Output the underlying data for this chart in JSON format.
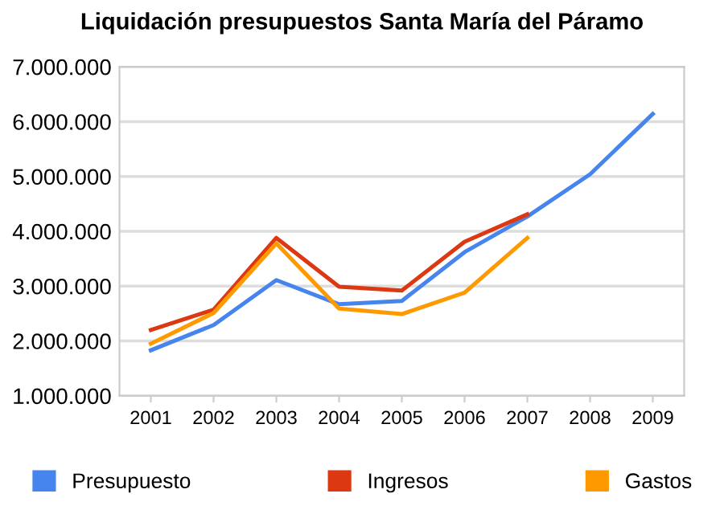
{
  "chart_data": {
    "type": "line",
    "title": "Liquidación presupuestos Santa María del Páramo",
    "categories": [
      "2001",
      "2002",
      "2003",
      "2004",
      "2005",
      "2006",
      "2007",
      "2008",
      "2009"
    ],
    "series": [
      {
        "name": "Presupuesto",
        "color": "#4684ee",
        "values": [
          1830000,
          2290000,
          3110000,
          2670000,
          2730000,
          3620000,
          4270000,
          5040000,
          6140000
        ]
      },
      {
        "name": "Ingresos",
        "color": "#dc3912",
        "values": [
          2200000,
          2570000,
          3880000,
          2990000,
          2920000,
          3810000,
          4310000,
          null,
          null
        ]
      },
      {
        "name": "Gastos",
        "color": "#ff9900",
        "values": [
          1950000,
          2510000,
          3780000,
          2590000,
          2490000,
          2880000,
          3880000,
          null,
          null
        ]
      }
    ],
    "ylim": [
      1000000,
      7000000
    ],
    "yticks": [
      {
        "value": 1000000,
        "label": "1.000.000"
      },
      {
        "value": 2000000,
        "label": "2.000.000"
      },
      {
        "value": 3000000,
        "label": "3.000.000"
      },
      {
        "value": 4000000,
        "label": "4.000.000"
      },
      {
        "value": 5000000,
        "label": "5.000.000"
      },
      {
        "value": 6000000,
        "label": "6.000.000"
      },
      {
        "value": 7000000,
        "label": "7.000.000"
      }
    ],
    "grid": "y",
    "legend": "bottom",
    "marker": "none",
    "line_style": "solid"
  }
}
